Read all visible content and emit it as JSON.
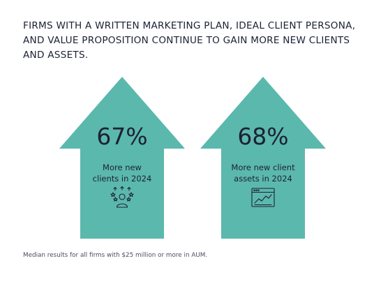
{
  "colors": {
    "arrow_fill": "#5bb8ad",
    "text": "#1c2133",
    "footnote_text": "#4a4f5c"
  },
  "headline": "FIRMS WITH A WRITTEN MARKETING PLAN, IDEAL CLIENT PERSONA, AND VALUE PROPOSITION CONTINUE TO GAIN MORE NEW CLIENTS AND ASSETS.",
  "chart_data": {
    "type": "other",
    "title": "FIRMS WITH A WRITTEN MARKETING PLAN, IDEAL CLIENT PERSONA, AND VALUE PROPOSITION CONTINUE TO GAIN MORE NEW CLIENTS AND ASSETS.",
    "stats": [
      {
        "value": 67,
        "value_label": "67%",
        "label_line1": "More new",
        "label_line2": "clients in 2024",
        "icon": "people-stars-icon"
      },
      {
        "value": 68,
        "value_label": "68%",
        "label_line1": "More new client",
        "label_line2": "assets in 2024",
        "icon": "growth-chart-window-icon"
      }
    ]
  },
  "footnote": "Median results for all firms with $25 million or more in AUM."
}
